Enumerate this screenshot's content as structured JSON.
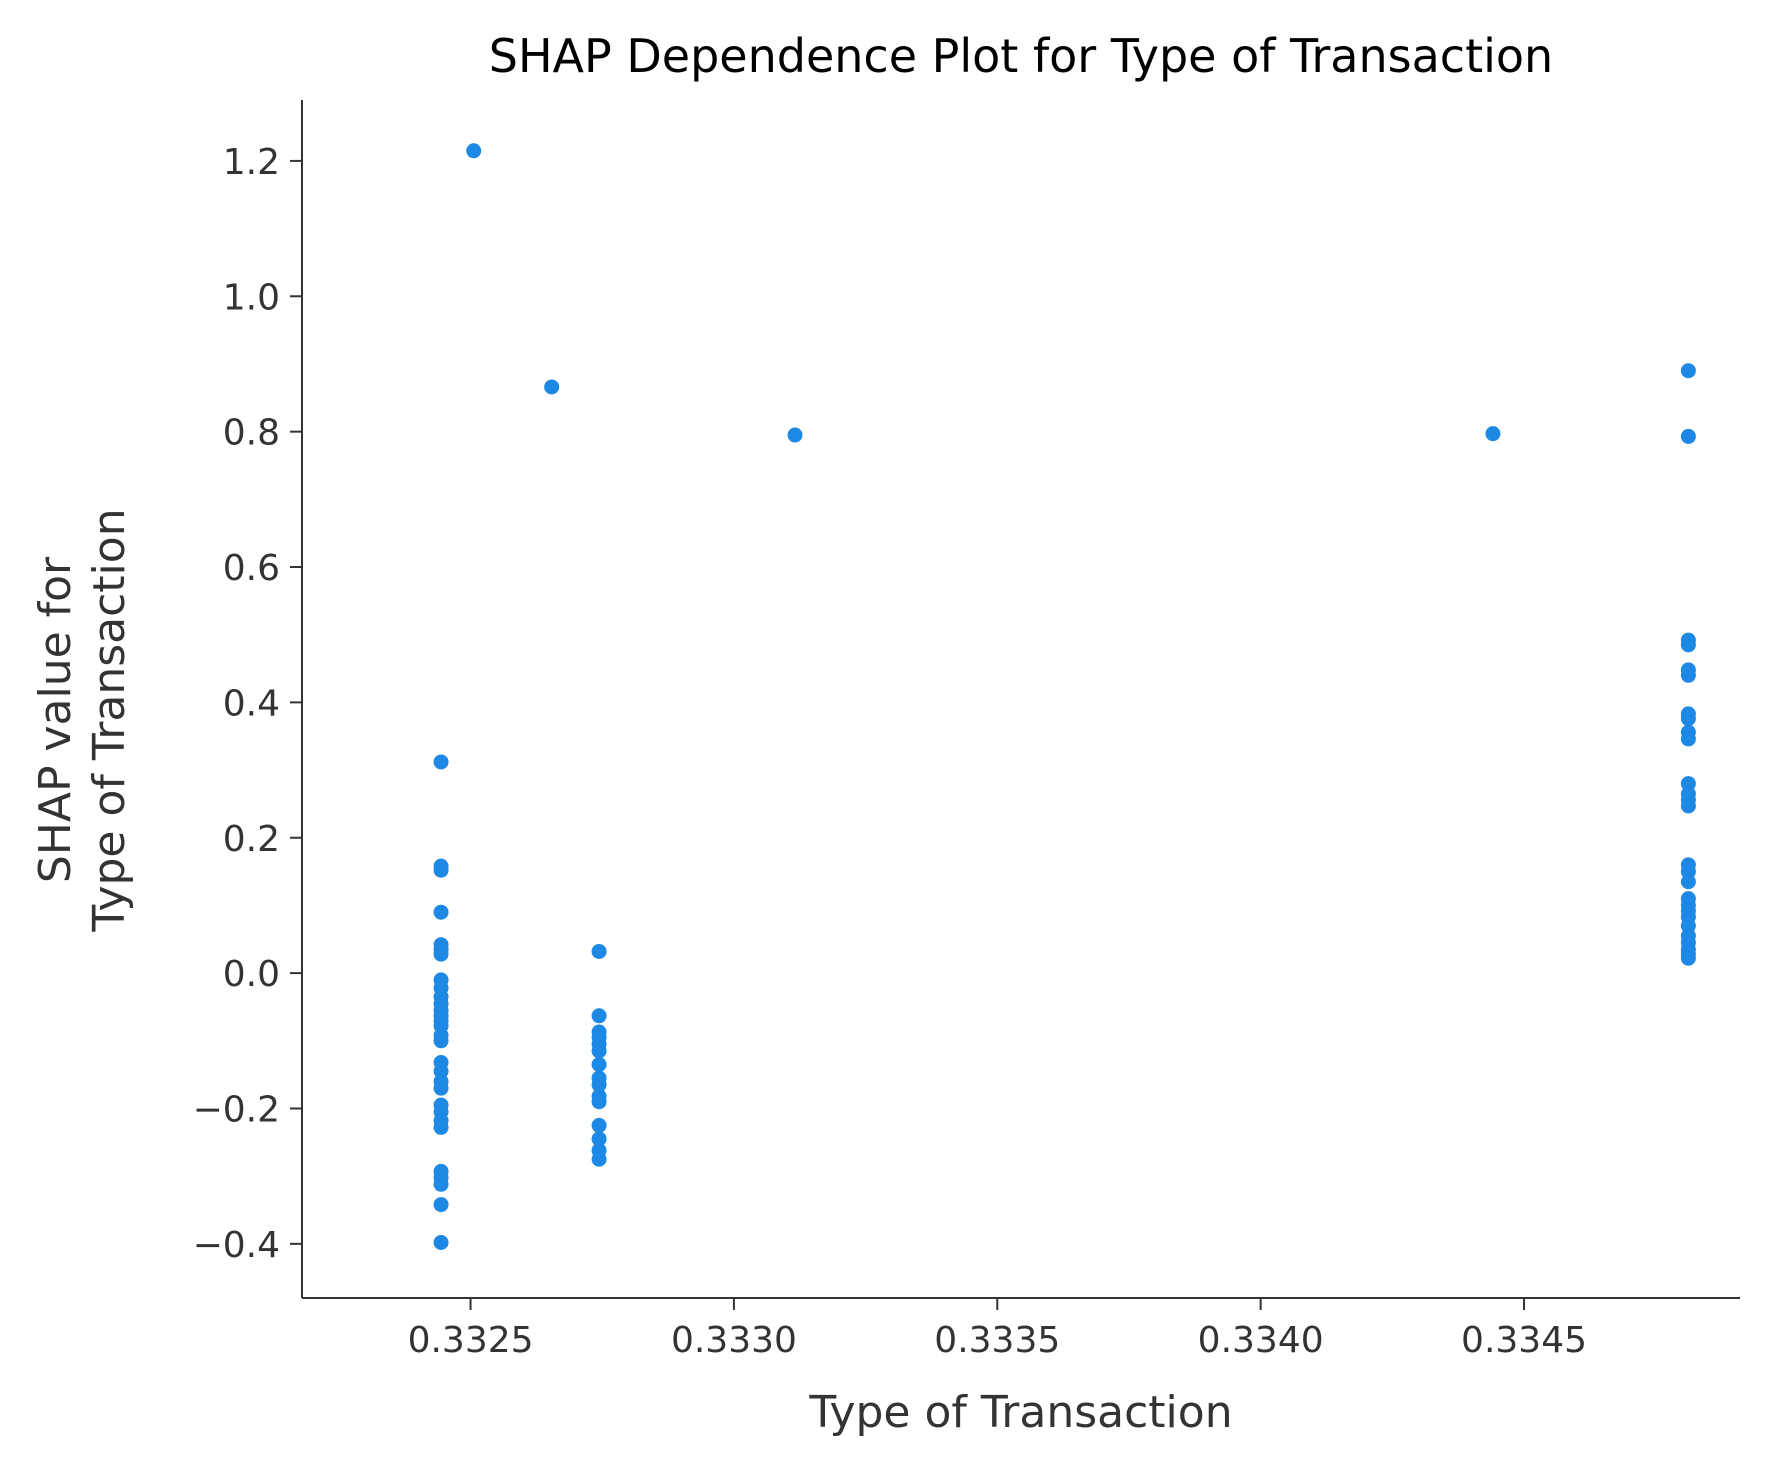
{
  "chart_data": {
    "type": "scatter",
    "title": "SHAP Dependence Plot for Type of Transaction",
    "xlabel": "Type of Transaction",
    "ylabel_lines": [
      "SHAP value for",
      "Type of Transaction"
    ],
    "xlim": [
      0.33218,
      0.33491
    ],
    "ylim": [
      -0.48,
      1.29
    ],
    "xticks": [
      0.3325,
      0.333,
      0.3335,
      0.334,
      0.3345
    ],
    "xtick_labels": [
      "0.3325",
      "0.3330",
      "0.3335",
      "0.3340",
      "0.3345"
    ],
    "yticks": [
      -0.4,
      -0.2,
      0.0,
      0.2,
      0.4,
      0.6,
      0.8,
      1.0,
      1.2
    ],
    "ytick_labels": [
      "−0.4",
      "−0.2",
      "0.0",
      "0.2",
      "0.4",
      "0.6",
      "0.8",
      "1.0",
      "1.2"
    ],
    "grid": false,
    "color": "#1e88e5",
    "points": [
      [
        0.332506,
        1.215
      ],
      [
        0.332654,
        0.866
      ],
      [
        0.333116,
        0.795
      ],
      [
        0.334441,
        0.797
      ],
      [
        0.332444,
        0.312
      ],
      [
        0.332444,
        0.158
      ],
      [
        0.332444,
        0.152
      ],
      [
        0.332444,
        0.09
      ],
      [
        0.332444,
        0.042
      ],
      [
        0.332444,
        0.035
      ],
      [
        0.332444,
        0.028
      ],
      [
        0.332444,
        -0.01
      ],
      [
        0.332444,
        -0.022
      ],
      [
        0.332444,
        -0.035
      ],
      [
        0.332444,
        -0.045
      ],
      [
        0.332444,
        -0.055
      ],
      [
        0.332444,
        -0.063
      ],
      [
        0.332444,
        -0.07
      ],
      [
        0.332444,
        -0.078
      ],
      [
        0.332444,
        -0.092
      ],
      [
        0.332444,
        -0.1
      ],
      [
        0.332444,
        -0.132
      ],
      [
        0.332444,
        -0.145
      ],
      [
        0.332444,
        -0.16
      ],
      [
        0.332444,
        -0.17
      ],
      [
        0.332444,
        -0.195
      ],
      [
        0.332444,
        -0.205
      ],
      [
        0.332444,
        -0.218
      ],
      [
        0.332444,
        -0.228
      ],
      [
        0.332444,
        -0.293
      ],
      [
        0.332444,
        -0.302
      ],
      [
        0.332444,
        -0.312
      ],
      [
        0.332444,
        -0.342
      ],
      [
        0.332444,
        -0.398
      ],
      [
        0.332744,
        0.032
      ],
      [
        0.332744,
        -0.063
      ],
      [
        0.332744,
        -0.087
      ],
      [
        0.332744,
        -0.095
      ],
      [
        0.332744,
        -0.105
      ],
      [
        0.332744,
        -0.115
      ],
      [
        0.332744,
        -0.135
      ],
      [
        0.332744,
        -0.155
      ],
      [
        0.332744,
        -0.165
      ],
      [
        0.332744,
        -0.182
      ],
      [
        0.332744,
        -0.19
      ],
      [
        0.332744,
        -0.225
      ],
      [
        0.332744,
        -0.245
      ],
      [
        0.332744,
        -0.262
      ],
      [
        0.332744,
        -0.275
      ],
      [
        0.334812,
        0.89
      ],
      [
        0.334812,
        0.793
      ],
      [
        0.334812,
        0.492
      ],
      [
        0.334812,
        0.485
      ],
      [
        0.334812,
        0.448
      ],
      [
        0.334812,
        0.44
      ],
      [
        0.334812,
        0.383
      ],
      [
        0.334812,
        0.376
      ],
      [
        0.334812,
        0.356
      ],
      [
        0.334812,
        0.346
      ],
      [
        0.334812,
        0.28
      ],
      [
        0.334812,
        0.265
      ],
      [
        0.334812,
        0.256
      ],
      [
        0.334812,
        0.247
      ],
      [
        0.334812,
        0.16
      ],
      [
        0.334812,
        0.15
      ],
      [
        0.334812,
        0.135
      ],
      [
        0.334812,
        0.11
      ],
      [
        0.334812,
        0.1
      ],
      [
        0.334812,
        0.092
      ],
      [
        0.334812,
        0.083
      ],
      [
        0.334812,
        0.07
      ],
      [
        0.334812,
        0.055
      ],
      [
        0.334812,
        0.045
      ],
      [
        0.334812,
        0.035
      ],
      [
        0.334812,
        0.028
      ],
      [
        0.334812,
        0.022
      ]
    ]
  }
}
